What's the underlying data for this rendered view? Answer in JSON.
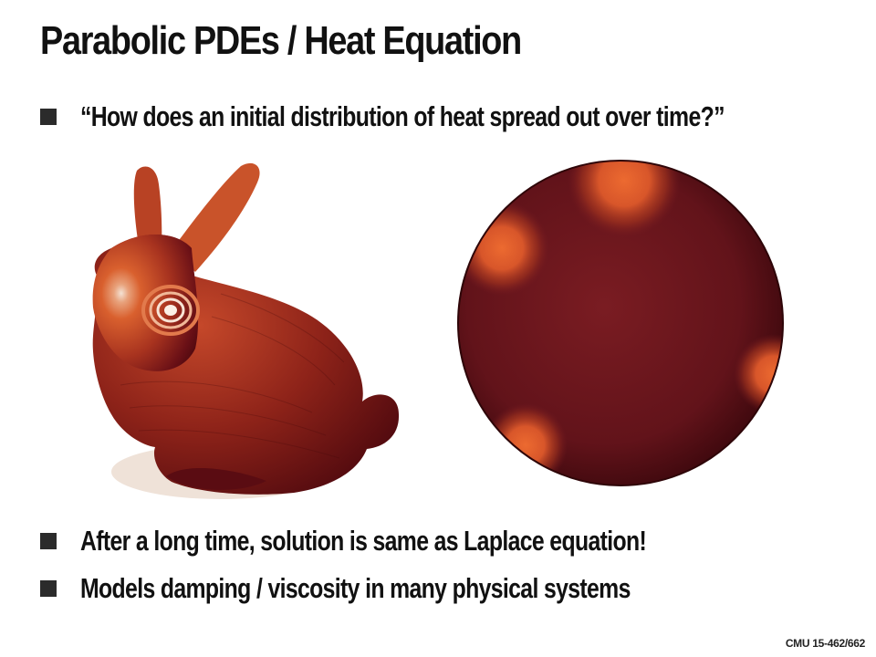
{
  "slide": {
    "title": "Parabolic PDEs / Heat Equation",
    "bullets": [
      "“How does an initial distribution of heat spread out over time?”",
      "After a long time, solution is same as Laplace equation!",
      "Models damping / viscosity in many physical systems"
    ],
    "footer": "CMU 15-462/662"
  },
  "figures": {
    "bunny": {
      "subject": "bunny-heat-diffusion",
      "colors": {
        "hot": "#f6e6d8",
        "warm": "#d85a2c",
        "cool": "#5a0c12"
      }
    },
    "sphere": {
      "subject": "sphere-heat-diffusion",
      "colors": {
        "hot": "#e8602e",
        "base": "#6e1820",
        "dark": "#3a070c"
      }
    }
  }
}
